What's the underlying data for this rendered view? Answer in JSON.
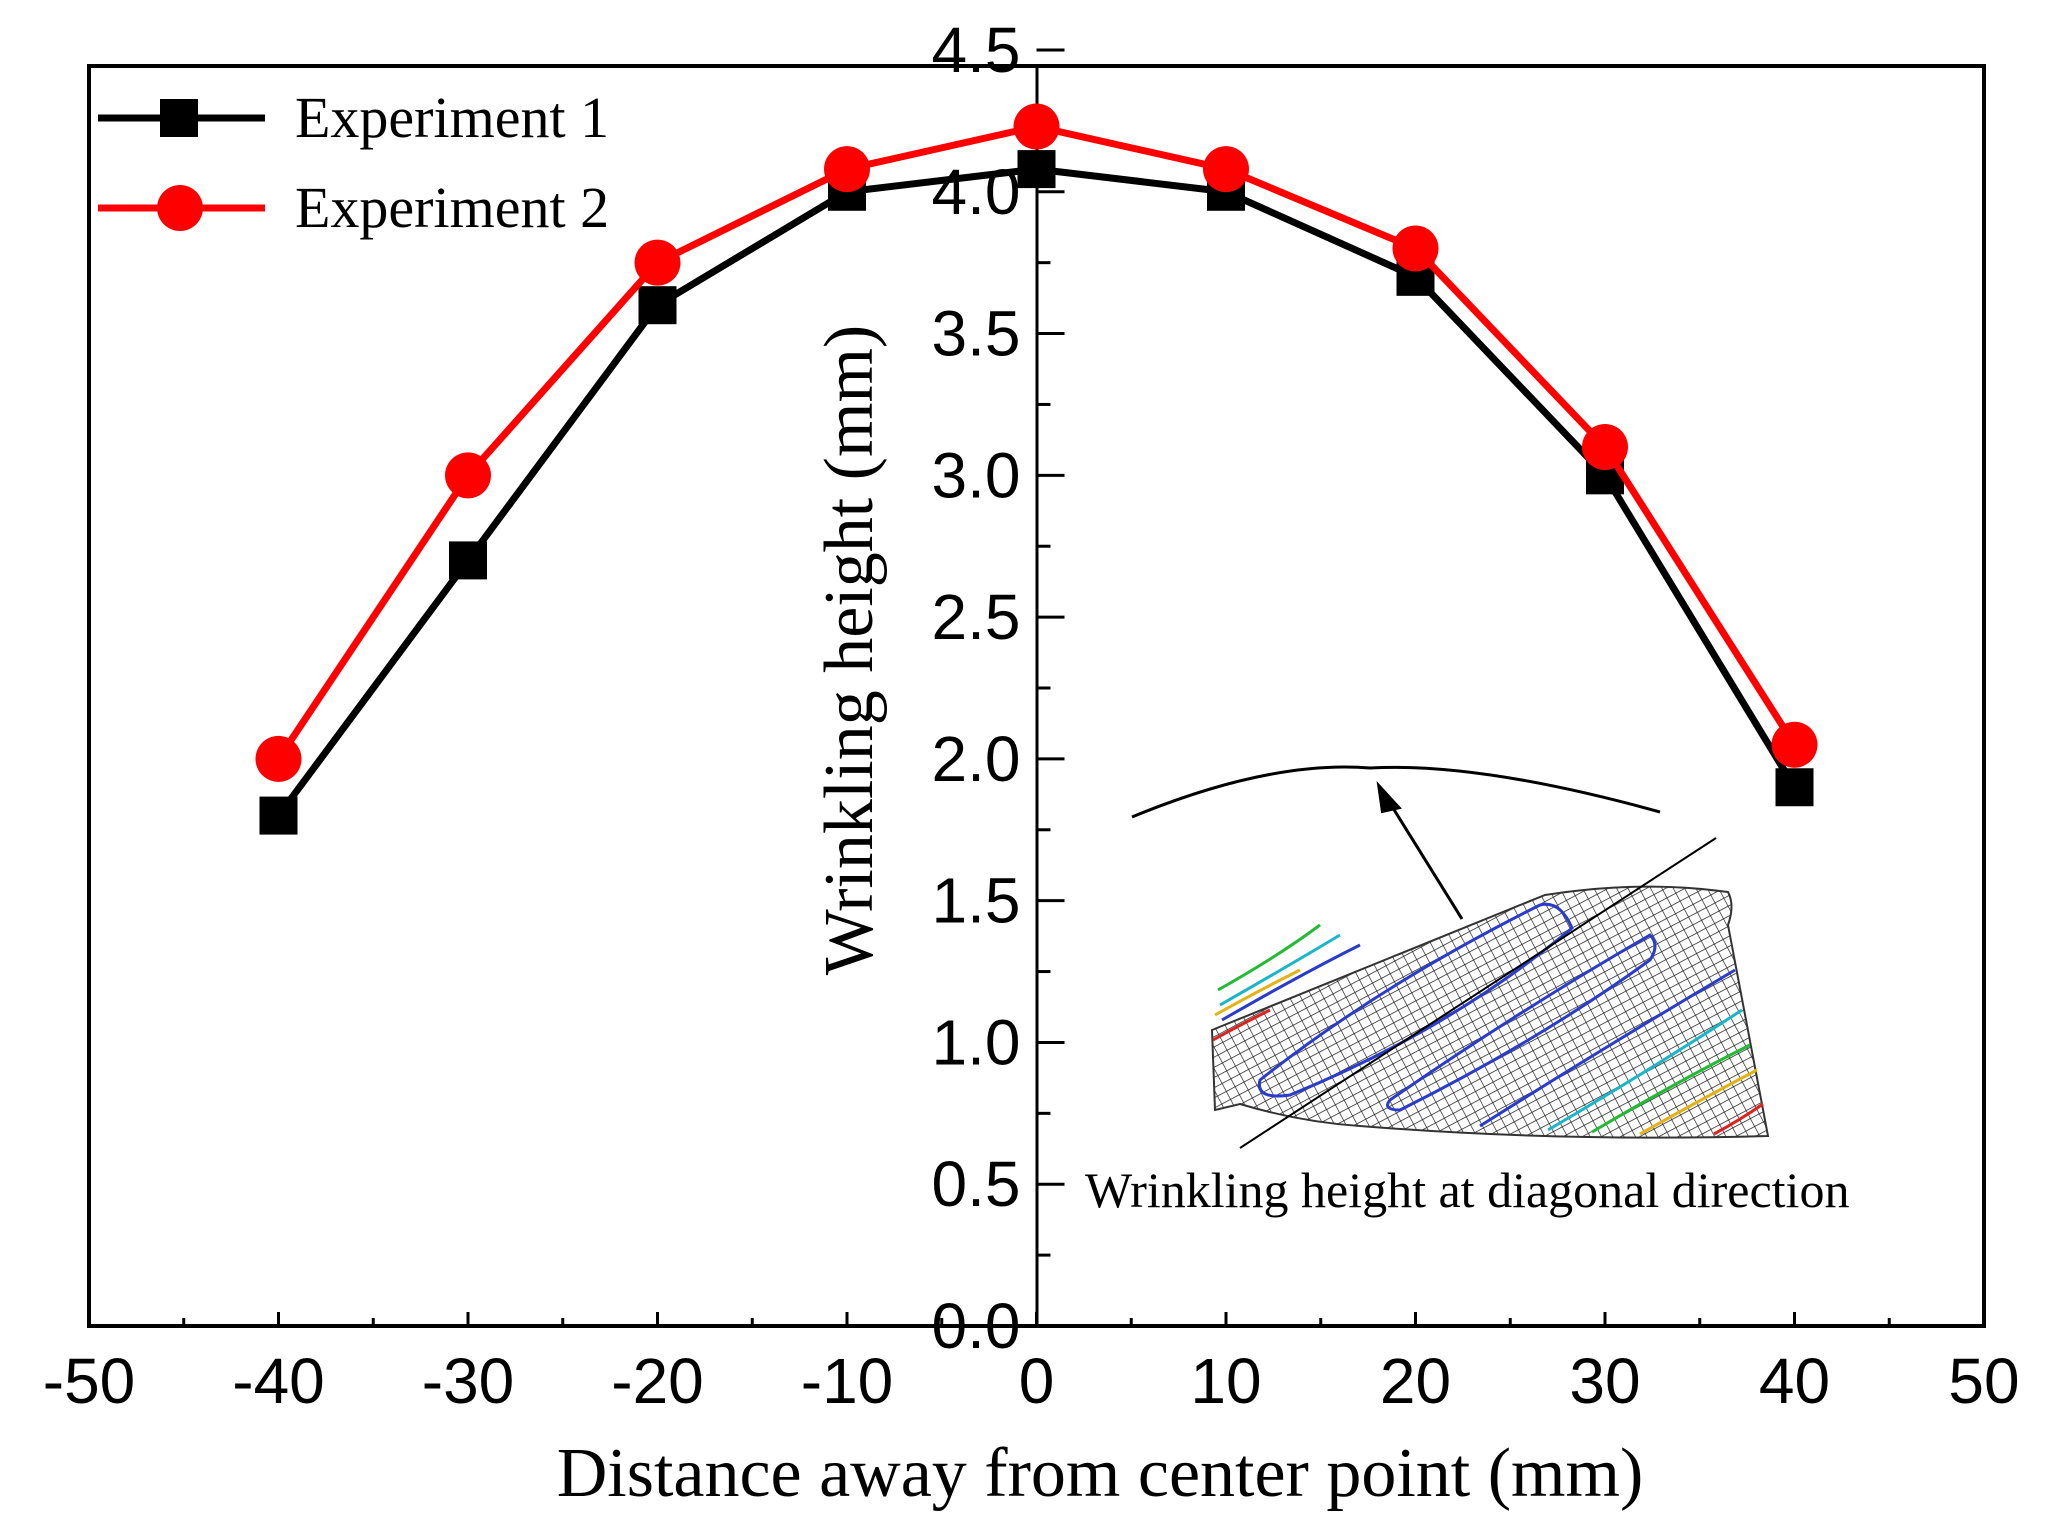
{
  "chart_data": {
    "type": "line",
    "title": "",
    "xlabel": "Distance away from center point (mm)",
    "ylabel": "Wrinkling height (mm)",
    "xlim": [
      -50,
      50
    ],
    "ylim": [
      0.0,
      4.5
    ],
    "x_ticks": [
      "-50",
      "-40",
      "-30",
      "-20",
      "-10",
      "0",
      "10",
      "20",
      "30",
      "40",
      "50"
    ],
    "y_ticks": [
      "0.0",
      "0.5",
      "1.0",
      "1.5",
      "2.0",
      "2.5",
      "3.0",
      "3.5",
      "4.0",
      "4.5"
    ],
    "grid": false,
    "legend_position": "top-left",
    "x": [
      -40,
      -30,
      -20,
      -10,
      0,
      10,
      20,
      30,
      40
    ],
    "series": [
      {
        "name": "Experiment 1",
        "color": "#000000",
        "marker": "square",
        "values": [
          1.8,
          2.7,
          3.6,
          4.0,
          4.08,
          4.0,
          3.7,
          3.0,
          1.9
        ]
      },
      {
        "name": "Experiment 2",
        "color": "#ff0000",
        "marker": "circle",
        "values": [
          2.0,
          3.0,
          3.75,
          4.08,
          4.23,
          4.08,
          3.8,
          3.1,
          2.05
        ]
      }
    ],
    "inset": {
      "caption": "Wrinkling height at diagonal direction",
      "icon": "wrinkled-sheet-mesh-icon"
    }
  }
}
